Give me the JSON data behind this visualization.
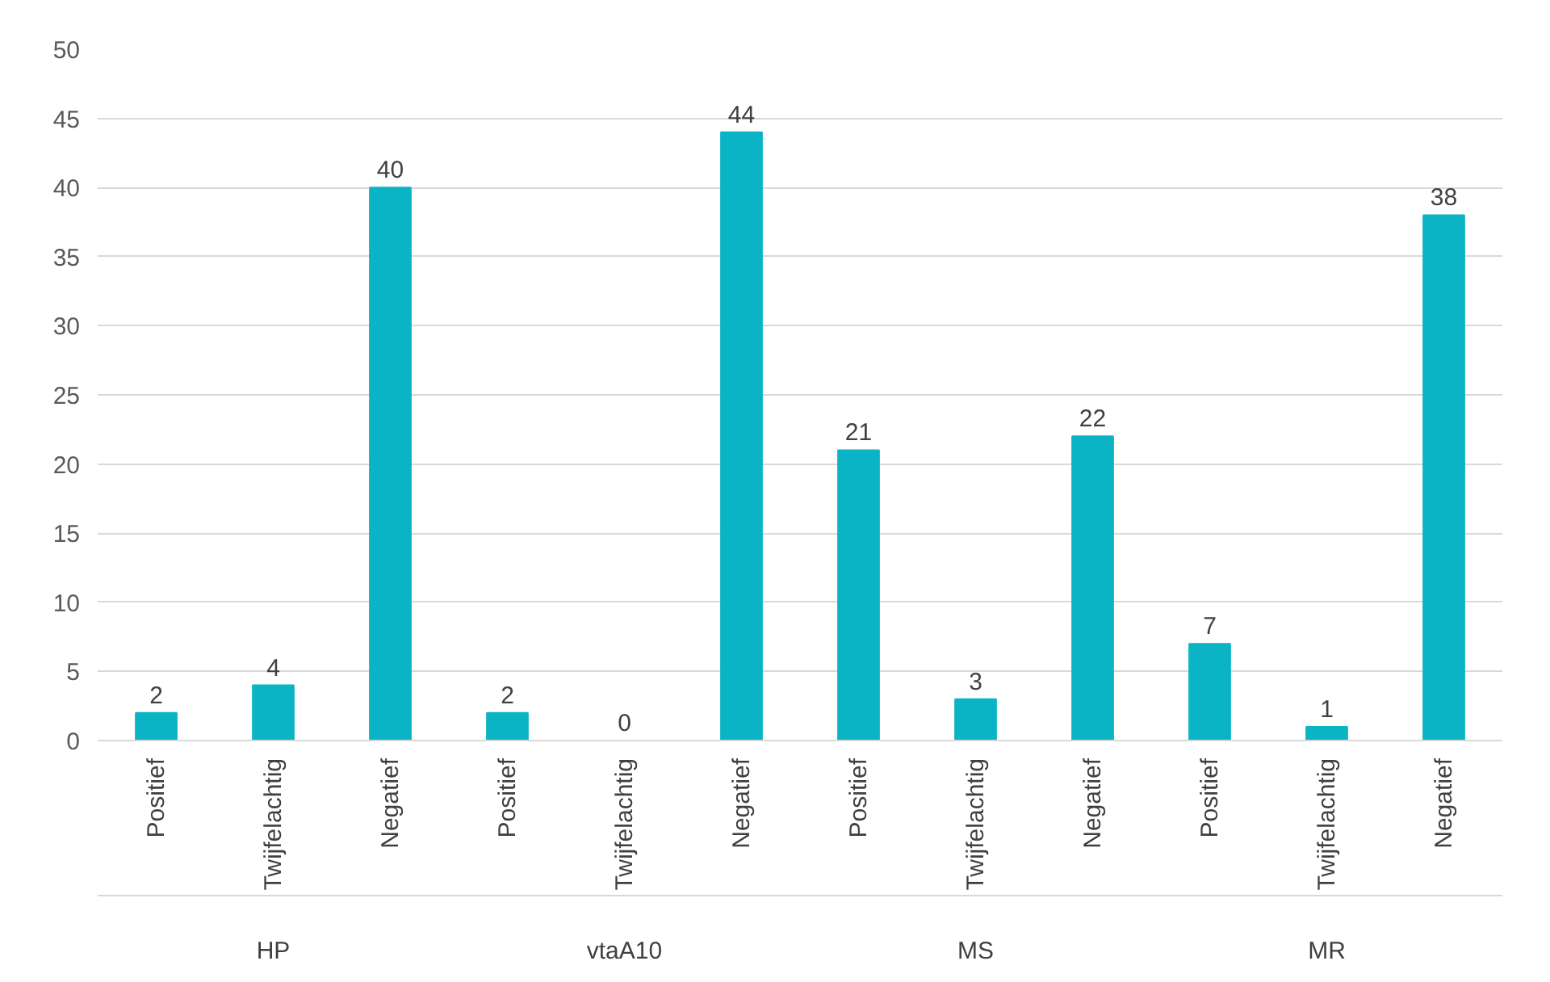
{
  "chart_data": {
    "type": "bar",
    "categories": [
      "Positief",
      "Twijfelachtig",
      "Negatief",
      "Positief",
      "Twijfelachtig",
      "Negatief",
      "Positief",
      "Twijfelachtig",
      "Negatief",
      "Positief",
      "Twijfelachtig",
      "Negatief"
    ],
    "values": [
      2,
      4,
      40,
      2,
      0,
      44,
      21,
      3,
      22,
      7,
      1,
      38
    ],
    "color": "#0ab4c4",
    "annotations": [
      "HP",
      "vtaA10",
      "MS",
      "MR"
    ],
    "ylim": [
      0,
      50
    ],
    "yticks": [
      0,
      5,
      10,
      15,
      20,
      25,
      30,
      35,
      40,
      45,
      50
    ],
    "grid": "y",
    "data_labels": true
  }
}
